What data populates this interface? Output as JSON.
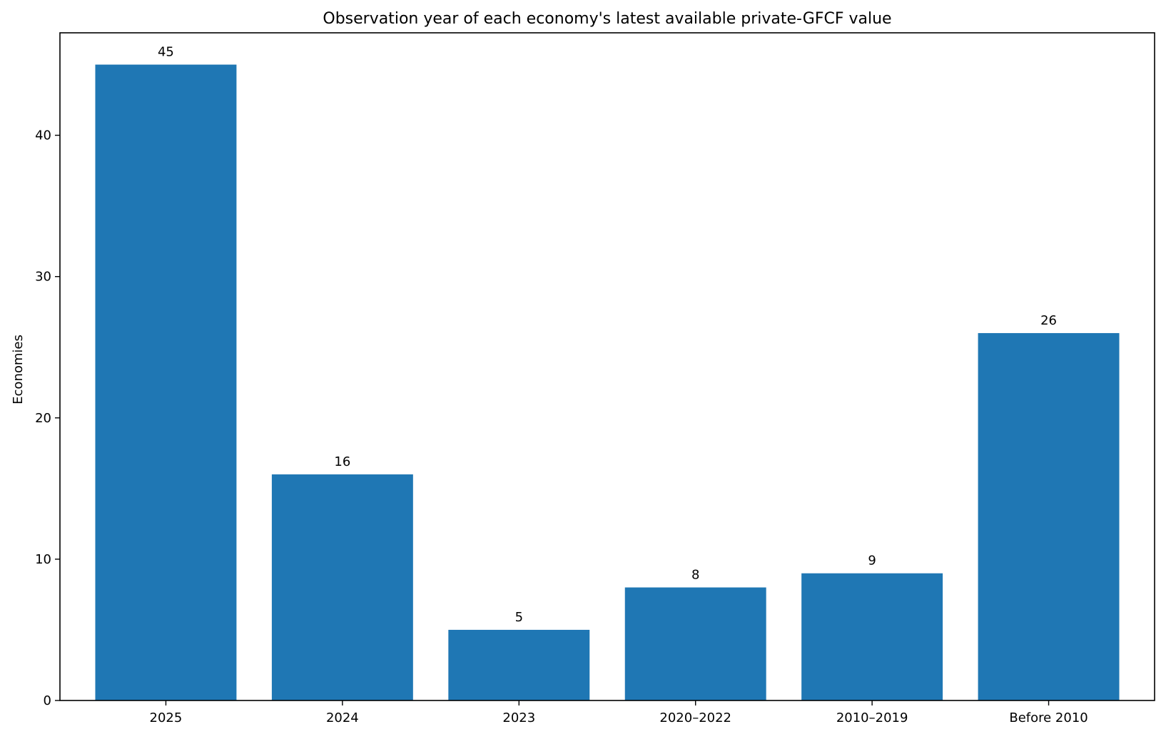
{
  "chart_data": {
    "type": "bar",
    "title": "Observation year of each economy's latest available private-GFCF value",
    "xlabel": "",
    "ylabel": "Economies",
    "categories": [
      "2025",
      "2024",
      "2023",
      "2020–2022",
      "2010–2019",
      "Before 2010"
    ],
    "values": [
      45,
      16,
      5,
      8,
      9,
      26
    ],
    "ylim": [
      0,
      47.25
    ],
    "yticks": [
      0,
      10,
      20,
      30,
      40
    ],
    "bar_color": "#1f77b4",
    "grid": false,
    "legend": "none"
  }
}
